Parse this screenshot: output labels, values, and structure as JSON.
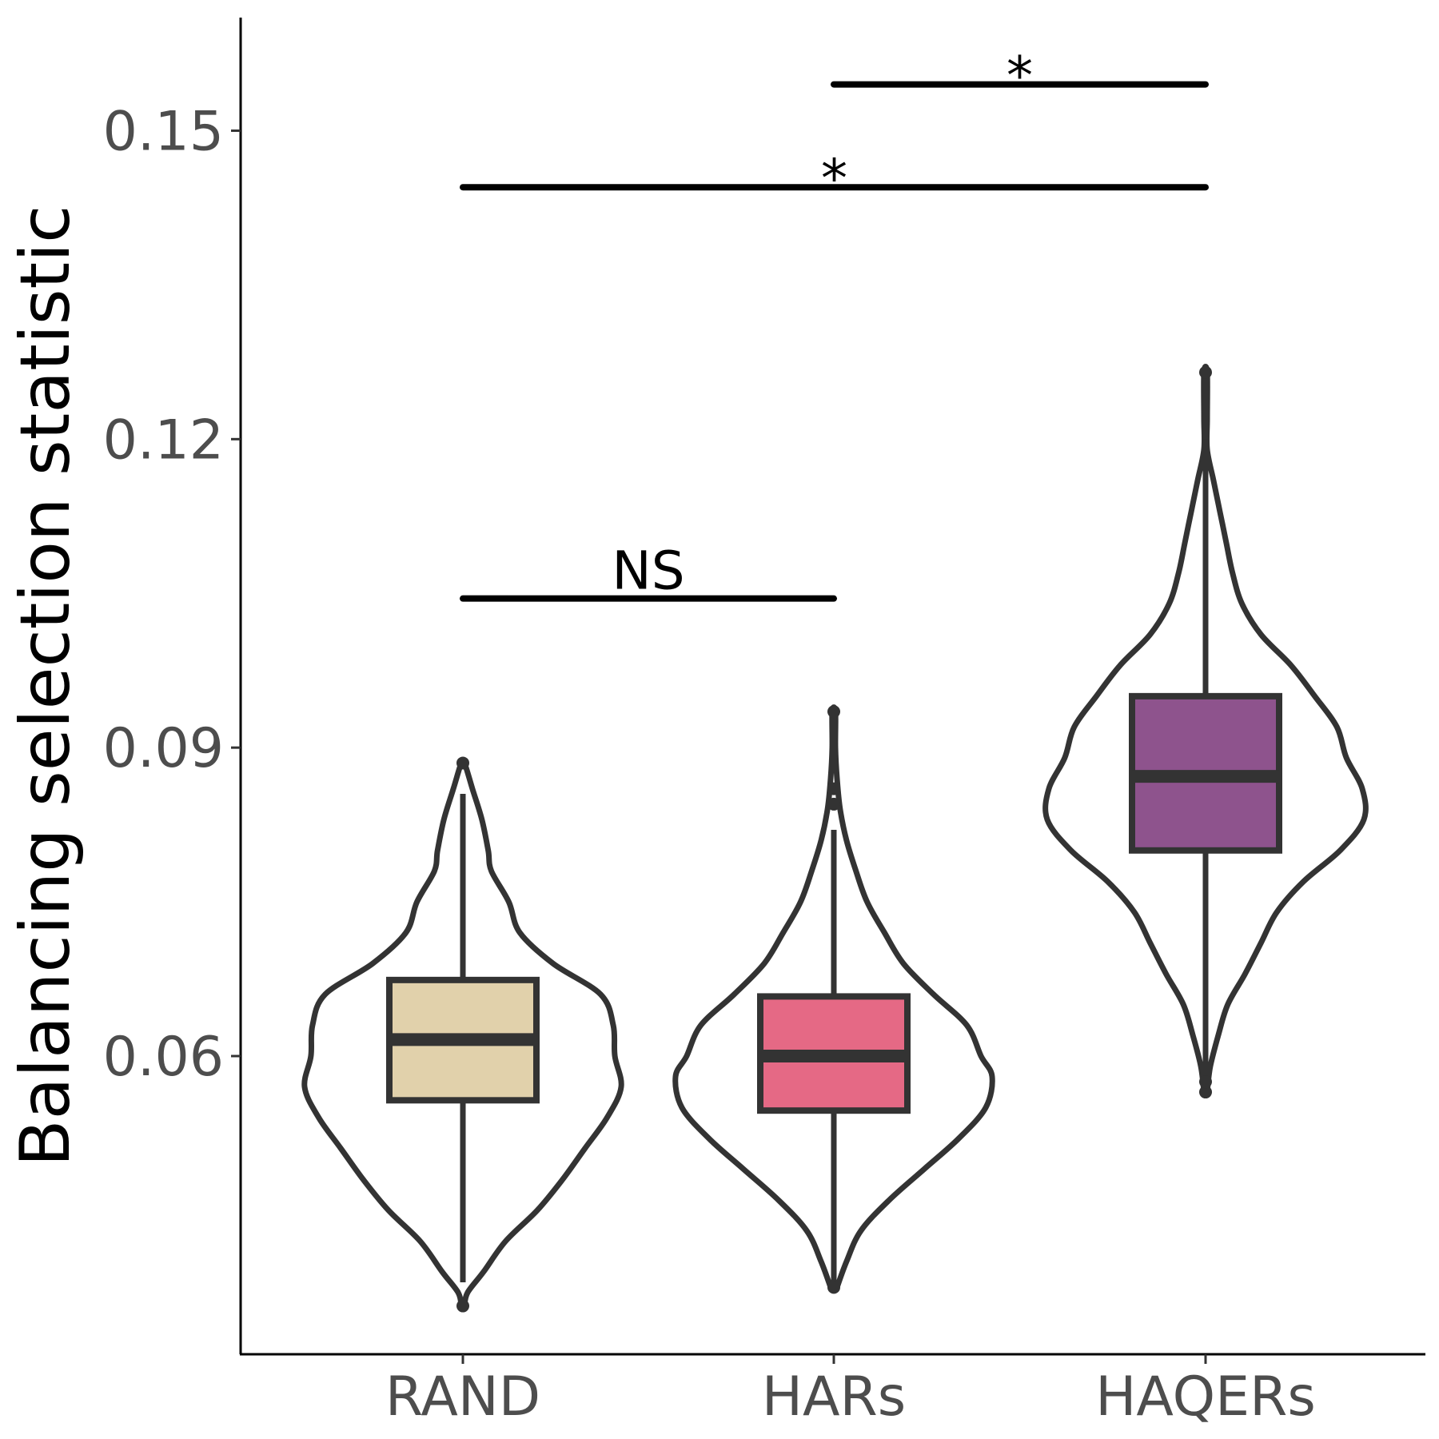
{
  "chart_data": {
    "type": "violin-box",
    "title": "",
    "xlabel": "",
    "ylabel": "Balancing selection statistic",
    "ylim": [
      0.031,
      0.161
    ],
    "yticks": [
      0.06,
      0.09,
      0.12,
      0.15
    ],
    "ytick_labels": [
      "0.06",
      "0.09",
      "0.12",
      "0.15"
    ],
    "grid": false,
    "legend": "none",
    "categories": [
      "RAND",
      "HARs",
      "HAQERs"
    ],
    "series": [
      {
        "category": "RAND",
        "fill": "#E1D1AB",
        "box": {
          "whisker_low": 0.038,
          "q1": 0.0557,
          "median": 0.0616,
          "q3": 0.0674,
          "whisker_high": 0.0855
        },
        "outliers": [
          0.0357,
          0.0885
        ],
        "violin_range": [
          0.0357,
          0.0885
        ],
        "violin_profile": [
          [
            0.0357,
            0.01
          ],
          [
            0.037,
            0.03
          ],
          [
            0.039,
            0.13
          ],
          [
            0.042,
            0.27
          ],
          [
            0.045,
            0.47
          ],
          [
            0.048,
            0.63
          ],
          [
            0.051,
            0.77
          ],
          [
            0.054,
            0.91
          ],
          [
            0.057,
            1.0
          ],
          [
            0.06,
            0.96
          ],
          [
            0.063,
            0.95
          ],
          [
            0.066,
            0.87
          ],
          [
            0.069,
            0.57
          ],
          [
            0.072,
            0.36
          ],
          [
            0.075,
            0.29
          ],
          [
            0.078,
            0.18
          ],
          [
            0.08,
            0.16
          ],
          [
            0.083,
            0.12
          ],
          [
            0.086,
            0.06
          ],
          [
            0.0885,
            0.01
          ]
        ]
      },
      {
        "category": "HARs",
        "fill": "#E56985",
        "box": {
          "whisker_low": 0.0375,
          "q1": 0.0547,
          "median": 0.06,
          "q3": 0.0658,
          "whisker_high": 0.082
        },
        "outliers": [
          0.0375,
          0.0845,
          0.086,
          0.0935
        ],
        "violin_range": [
          0.0375,
          0.0935
        ],
        "violin_profile": [
          [
            0.0375,
            0.02
          ],
          [
            0.04,
            0.08
          ],
          [
            0.043,
            0.17
          ],
          [
            0.046,
            0.35
          ],
          [
            0.049,
            0.57
          ],
          [
            0.052,
            0.79
          ],
          [
            0.055,
            0.96
          ],
          [
            0.058,
            1.0
          ],
          [
            0.06,
            0.93
          ],
          [
            0.063,
            0.84
          ],
          [
            0.066,
            0.63
          ],
          [
            0.069,
            0.44
          ],
          [
            0.072,
            0.32
          ],
          [
            0.075,
            0.21
          ],
          [
            0.078,
            0.14
          ],
          [
            0.081,
            0.08
          ],
          [
            0.084,
            0.04
          ],
          [
            0.087,
            0.02
          ],
          [
            0.09,
            0.01
          ],
          [
            0.0935,
            0.01
          ]
        ]
      },
      {
        "category": "HAQERs",
        "fill": "#8E538D",
        "box": {
          "whisker_low": 0.058,
          "q1": 0.08,
          "median": 0.0872,
          "q3": 0.095,
          "whisker_high": 0.12
        },
        "outliers": [
          0.0565,
          0.0575,
          0.1265
        ],
        "violin_range": [
          0.0565,
          0.1265
        ],
        "violin_profile": [
          [
            0.0565,
            0.01
          ],
          [
            0.059,
            0.03
          ],
          [
            0.062,
            0.08
          ],
          [
            0.065,
            0.14
          ],
          [
            0.068,
            0.25
          ],
          [
            0.071,
            0.35
          ],
          [
            0.074,
            0.45
          ],
          [
            0.077,
            0.62
          ],
          [
            0.08,
            0.85
          ],
          [
            0.083,
            1.0
          ],
          [
            0.086,
            0.99
          ],
          [
            0.089,
            0.89
          ],
          [
            0.092,
            0.83
          ],
          [
            0.095,
            0.69
          ],
          [
            0.098,
            0.54
          ],
          [
            0.101,
            0.35
          ],
          [
            0.104,
            0.23
          ],
          [
            0.107,
            0.17
          ],
          [
            0.11,
            0.13
          ],
          [
            0.113,
            0.09
          ],
          [
            0.116,
            0.05
          ],
          [
            0.119,
            0.01
          ],
          [
            0.122,
            0.01
          ],
          [
            0.1265,
            0.01
          ]
        ]
      }
    ],
    "significance_brackets": [
      {
        "from": "RAND",
        "to": "HARs",
        "y": 0.1045,
        "label": "NS"
      },
      {
        "from": "RAND",
        "to": "HAQERs",
        "y": 0.1445,
        "label": "*"
      },
      {
        "from": "HARs",
        "to": "HAQERs",
        "y": 0.1545,
        "label": "*"
      }
    ]
  }
}
